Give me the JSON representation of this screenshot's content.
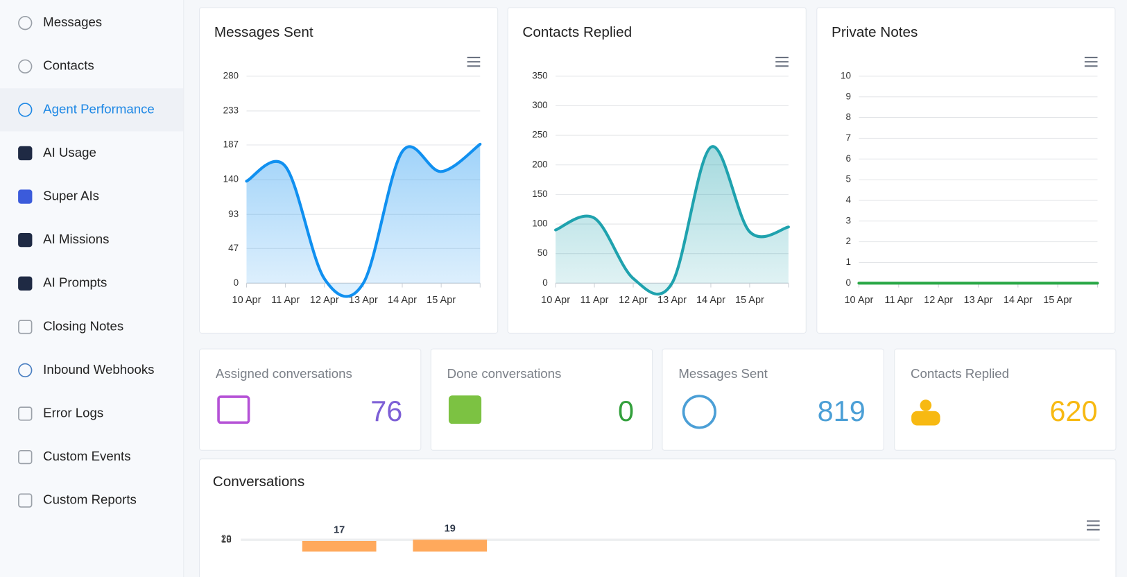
{
  "sidebar": {
    "items": [
      {
        "label": "Messages"
      },
      {
        "label": "Contacts"
      },
      {
        "label": "Agent Performance",
        "active": true
      },
      {
        "label": "AI Usage"
      },
      {
        "label": "Super AIs"
      },
      {
        "label": "AI Missions"
      },
      {
        "label": "AI Prompts"
      },
      {
        "label": "Closing Notes"
      },
      {
        "label": "Inbound Webhooks"
      },
      {
        "label": "Error Logs"
      },
      {
        "label": "Custom Events"
      },
      {
        "label": "Custom Reports"
      }
    ]
  },
  "stats": [
    {
      "label": "Assigned conversations",
      "value": "76",
      "color": "#7d5fd6"
    },
    {
      "label": "Done conversations",
      "value": "0",
      "color": "#33a03c"
    },
    {
      "label": "Messages Sent",
      "value": "819",
      "color": "#4b9fd6"
    },
    {
      "label": "Contacts Replied",
      "value": "620",
      "color": "#f7b912"
    }
  ],
  "chart_data": [
    {
      "type": "line",
      "title": "Messages Sent",
      "area": true,
      "color": "#1090f0",
      "categories": [
        "10 Apr",
        "11 Apr",
        "12 Apr",
        "13 Apr",
        "14 Apr",
        "15 Apr",
        null
      ],
      "values": [
        138,
        158,
        6,
        0,
        178,
        151,
        188
      ],
      "ylim": [
        0,
        280
      ],
      "yticks": [
        0,
        47,
        93,
        140,
        187,
        233,
        280
      ],
      "grid": true
    },
    {
      "type": "line",
      "title": "Contacts Replied",
      "area": true,
      "color": "#1fa2ae",
      "categories": [
        "10 Apr",
        "11 Apr",
        "12 Apr",
        "13 Apr",
        "14 Apr",
        "15 Apr",
        null
      ],
      "values": [
        90,
        110,
        8,
        0,
        230,
        87,
        95
      ],
      "ylim": [
        0,
        350
      ],
      "yticks": [
        0,
        50,
        100,
        150,
        200,
        250,
        300,
        350
      ],
      "grid": true
    },
    {
      "type": "line",
      "title": "Private Notes",
      "area": true,
      "color": "#28a745",
      "categories": [
        "10 Apr",
        "11 Apr",
        "12 Apr",
        "13 Apr",
        "14 Apr",
        "15 Apr",
        null
      ],
      "values": [
        0,
        0,
        0,
        0,
        0,
        0,
        0
      ],
      "ylim": [
        0,
        10
      ],
      "yticks": [
        0,
        1,
        2,
        3,
        4,
        5,
        6,
        7,
        8,
        9,
        10
      ],
      "grid": true
    },
    {
      "type": "bar",
      "title": "Conversations",
      "color": "#ffa95c",
      "categories": [
        null,
        null
      ],
      "values": [
        17,
        19
      ],
      "ylim": [
        0,
        20
      ],
      "yticks": [
        18,
        20
      ],
      "grid": true
    }
  ]
}
